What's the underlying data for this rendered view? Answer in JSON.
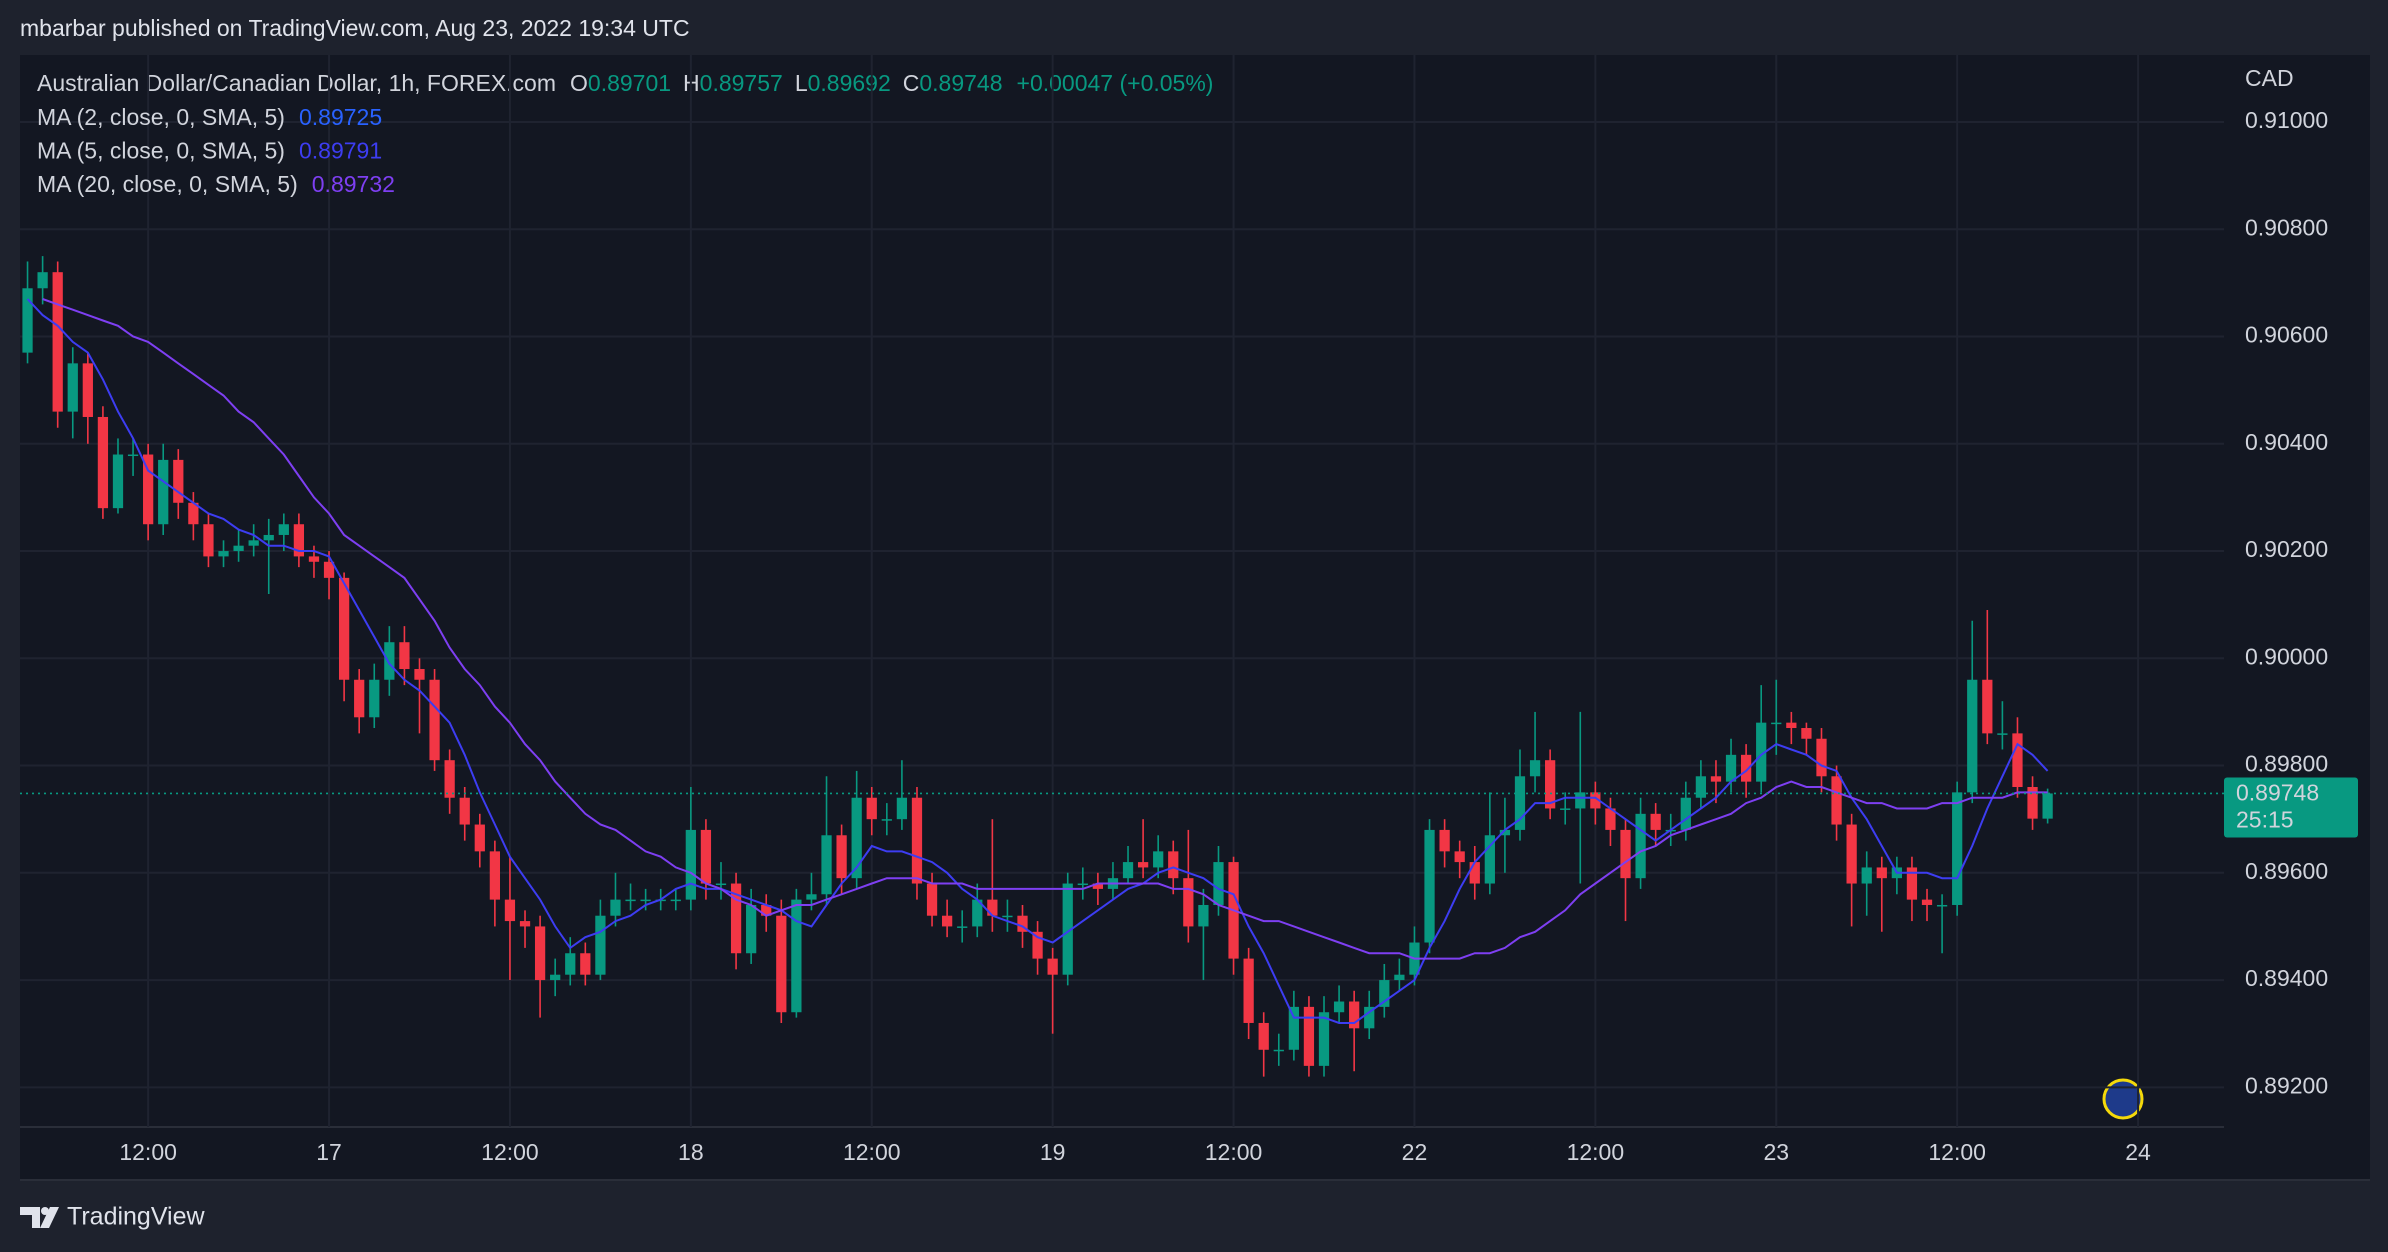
{
  "header": "mbarbar published on TradingView.com, Aug 23, 2022 19:34 UTC",
  "footer": "TradingView",
  "chart_data": {
    "type": "candlestick",
    "title": "Australian Dollar/Canadian Dollar, 1h, FOREX.com",
    "ohlc_labels": [
      "O",
      "H",
      "L",
      "C"
    ],
    "ohlc_values": [
      0.89701,
      0.89757,
      0.89692,
      0.89748
    ],
    "change_label": "+0.00047 (+0.05%)",
    "y_axis_label": "CAD",
    "last_price": 0.89748,
    "countdown": "25:15",
    "up_color": "#089981",
    "down_color": "#f23645",
    "grid": true,
    "ylim": [
      0.89126,
      0.91125
    ],
    "yticks": [
      {
        "value": 0.892,
        "label": "0.89200"
      },
      {
        "value": 0.894,
        "label": "0.89400"
      },
      {
        "value": 0.896,
        "label": "0.89600"
      },
      {
        "value": 0.898,
        "label": "0.89800"
      },
      {
        "value": 0.9,
        "label": "0.90000"
      },
      {
        "value": 0.902,
        "label": "0.90200"
      },
      {
        "value": 0.904,
        "label": "0.90400"
      },
      {
        "value": 0.906,
        "label": "0.90600"
      },
      {
        "value": 0.908,
        "label": "0.90800"
      },
      {
        "value": 0.91,
        "label": "0.91000"
      }
    ],
    "categories": [
      null,
      null,
      null,
      null,
      null,
      null,
      null,
      null,
      "12:00",
      null,
      null,
      null,
      null,
      null,
      null,
      null,
      null,
      null,
      null,
      null,
      "17",
      null,
      null,
      null,
      null,
      null,
      null,
      null,
      null,
      null,
      null,
      null,
      "12:00",
      null,
      null,
      null,
      null,
      null,
      null,
      null,
      null,
      null,
      null,
      null,
      "18",
      null,
      null,
      null,
      null,
      null,
      null,
      null,
      null,
      null,
      null,
      null,
      "12:00",
      null,
      null,
      null,
      null,
      null,
      null,
      null,
      null,
      null,
      null,
      null,
      "19",
      null,
      null,
      null,
      null,
      null,
      null,
      null,
      null,
      null,
      null,
      null,
      "12:00",
      null,
      null,
      null,
      null,
      null,
      null,
      null,
      null,
      null,
      null,
      null,
      "22",
      null,
      null,
      null,
      null,
      null,
      null,
      null,
      null,
      null,
      null,
      null,
      "12:00",
      null,
      null,
      null,
      null,
      null,
      null,
      null,
      null,
      null,
      null,
      null,
      "23",
      null,
      null,
      null,
      null,
      null,
      null,
      null,
      null,
      null,
      null,
      null,
      "12:00",
      null,
      null,
      null,
      null,
      null,
      null,
      null,
      null,
      null,
      null,
      null,
      "24"
    ],
    "open": [
      0.9057,
      0.9069,
      0.9072,
      0.9046,
      0.9055,
      0.9045,
      0.9028,
      0.9038,
      0.9038,
      0.9025,
      0.9037,
      0.9029,
      0.9025,
      0.9019,
      0.902,
      0.9021,
      0.9022,
      0.9023,
      0.9025,
      0.9019,
      0.9018,
      0.9015,
      0.8996,
      0.8989,
      0.8996,
      0.9003,
      0.8998,
      0.8996,
      0.8981,
      0.8974,
      0.8969,
      0.8964,
      0.8955,
      0.8951,
      0.895,
      0.894,
      0.8941,
      0.8945,
      0.8941,
      0.8952,
      0.8955,
      0.8955,
      0.8955,
      0.8955,
      0.8955,
      0.8968,
      0.8958,
      0.8958,
      0.8945,
      0.8954,
      0.8952,
      0.8934,
      0.8955,
      0.8956,
      0.8967,
      0.8959,
      0.8974,
      0.897,
      0.897,
      0.8974,
      0.8958,
      0.8952,
      0.895,
      0.895,
      0.8955,
      0.8952,
      0.8952,
      0.8949,
      0.8944,
      0.8941,
      0.8958,
      0.8958,
      0.8957,
      0.8959,
      0.8962,
      0.8961,
      0.8964,
      0.8959,
      0.895,
      0.8954,
      0.8962,
      0.8944,
      0.8932,
      0.8927,
      0.8927,
      0.8935,
      0.8924,
      0.8934,
      0.8936,
      0.8931,
      0.8935,
      0.894,
      0.8941,
      0.8947,
      0.8968,
      0.8964,
      0.8962,
      0.8958,
      0.8967,
      0.8968,
      0.8978,
      0.8981,
      0.8972,
      0.8972,
      0.8975,
      0.8972,
      0.8968,
      0.8959,
      0.8971,
      0.8968,
      0.8968,
      0.8974,
      0.8978,
      0.8977,
      0.8982,
      0.8977,
      0.8988,
      0.8988,
      0.8987,
      0.8985,
      0.8978,
      0.8969,
      0.8958,
      0.8961,
      0.8959,
      0.8961,
      0.8955,
      0.8954,
      0.8954,
      0.8975,
      0.8996,
      0.8986,
      0.8986,
      0.8976,
      0.89701,
      null,
      null,
      null,
      null,
      null,
      null
    ],
    "high": [
      0.9074,
      0.9075,
      0.9074,
      0.9058,
      0.9057,
      0.9047,
      0.9041,
      0.9041,
      0.904,
      0.904,
      0.9039,
      0.9031,
      0.9027,
      0.9022,
      0.9024,
      0.9025,
      0.9026,
      0.9027,
      0.9027,
      0.9021,
      0.902,
      0.9016,
      0.8998,
      0.8999,
      0.9006,
      0.9006,
      0.9,
      0.8998,
      0.8983,
      0.8976,
      0.8971,
      0.8966,
      0.8963,
      0.8953,
      0.8952,
      0.8944,
      0.8948,
      0.8947,
      0.8955,
      0.896,
      0.8958,
      0.8957,
      0.8957,
      0.8957,
      0.8976,
      0.897,
      0.8962,
      0.896,
      0.8957,
      0.8956,
      0.8955,
      0.8957,
      0.896,
      0.8978,
      0.8969,
      0.8979,
      0.8976,
      0.8973,
      0.8981,
      0.8976,
      0.896,
      0.8955,
      0.8953,
      0.8958,
      0.897,
      0.8955,
      0.8954,
      0.8951,
      0.8946,
      0.896,
      0.8961,
      0.896,
      0.8962,
      0.8965,
      0.897,
      0.8967,
      0.8966,
      0.8968,
      0.8957,
      0.8965,
      0.8963,
      0.8946,
      0.8934,
      0.893,
      0.8938,
      0.8937,
      0.8937,
      0.8939,
      0.8938,
      0.8938,
      0.8943,
      0.8944,
      0.895,
      0.897,
      0.897,
      0.8966,
      0.8965,
      0.8975,
      0.8974,
      0.8983,
      0.899,
      0.8983,
      0.8975,
      0.899,
      0.8977,
      0.8974,
      0.897,
      0.8974,
      0.8973,
      0.8971,
      0.8977,
      0.8981,
      0.8981,
      0.8985,
      0.8984,
      0.8995,
      0.8996,
      0.899,
      0.8988,
      0.8987,
      0.898,
      0.8971,
      0.8964,
      0.8963,
      0.8963,
      0.8963,
      0.8957,
      0.8956,
      0.8977,
      0.9007,
      0.9009,
      0.8992,
      0.8989,
      0.8978,
      0.89757,
      null,
      null,
      null,
      null,
      null,
      null
    ],
    "low": [
      0.9055,
      0.9066,
      0.9043,
      0.9041,
      0.904,
      0.9026,
      0.9027,
      0.9034,
      0.9022,
      0.9023,
      0.9026,
      0.9022,
      0.9017,
      0.9017,
      0.9018,
      0.9019,
      0.9012,
      0.902,
      0.9017,
      0.9015,
      0.9011,
      0.8992,
      0.8986,
      0.8987,
      0.8993,
      0.8995,
      0.8986,
      0.8979,
      0.8971,
      0.8966,
      0.8961,
      0.895,
      0.894,
      0.8946,
      0.8933,
      0.8937,
      0.8939,
      0.8939,
      0.894,
      0.895,
      0.8953,
      0.8953,
      0.8953,
      0.8953,
      0.8953,
      0.8955,
      0.8955,
      0.8942,
      0.8943,
      0.8949,
      0.8932,
      0.8933,
      0.8953,
      0.8954,
      0.8956,
      0.8957,
      0.8967,
      0.8967,
      0.8968,
      0.8955,
      0.895,
      0.8948,
      0.8947,
      0.8948,
      0.8949,
      0.8949,
      0.8946,
      0.8941,
      0.893,
      0.8939,
      0.8955,
      0.8954,
      0.8955,
      0.8958,
      0.8959,
      0.8959,
      0.8956,
      0.8947,
      0.894,
      0.8952,
      0.8941,
      0.8929,
      0.8922,
      0.8924,
      0.8925,
      0.8922,
      0.8922,
      0.8932,
      0.8923,
      0.8929,
      0.8933,
      0.8938,
      0.8939,
      0.8945,
      0.8961,
      0.8959,
      0.8955,
      0.8956,
      0.896,
      0.8966,
      0.8975,
      0.897,
      0.8969,
      0.8958,
      0.8969,
      0.8965,
      0.8951,
      0.8957,
      0.8965,
      0.8965,
      0.8966,
      0.8972,
      0.8973,
      0.8975,
      0.8974,
      0.8975,
      0.8982,
      0.8984,
      0.8982,
      0.8975,
      0.8966,
      0.895,
      0.8952,
      0.8949,
      0.8956,
      0.8951,
      0.8951,
      0.8945,
      0.8952,
      0.8973,
      0.8984,
      0.8983,
      0.8974,
      0.8968,
      0.89692,
      null,
      null,
      null,
      null,
      null,
      null
    ],
    "close": [
      0.9069,
      0.9072,
      0.9046,
      0.9055,
      0.9045,
      0.9028,
      0.9038,
      0.9038,
      0.9025,
      0.9037,
      0.9029,
      0.9025,
      0.9019,
      0.902,
      0.9021,
      0.9022,
      0.9023,
      0.9025,
      0.9019,
      0.9018,
      0.9015,
      0.8996,
      0.8989,
      0.8996,
      0.9003,
      0.8998,
      0.8996,
      0.8981,
      0.8974,
      0.8969,
      0.8964,
      0.8955,
      0.8951,
      0.895,
      0.894,
      0.8941,
      0.8945,
      0.8941,
      0.8952,
      0.8955,
      0.8955,
      0.8955,
      0.8955,
      0.8955,
      0.8968,
      0.8958,
      0.8958,
      0.8945,
      0.8954,
      0.8952,
      0.8934,
      0.8955,
      0.8956,
      0.8967,
      0.8959,
      0.8974,
      0.897,
      0.897,
      0.8974,
      0.8958,
      0.8952,
      0.895,
      0.895,
      0.8955,
      0.8952,
      0.8952,
      0.8949,
      0.8944,
      0.8941,
      0.8958,
      0.8958,
      0.8957,
      0.8959,
      0.8962,
      0.8961,
      0.8964,
      0.8959,
      0.895,
      0.8954,
      0.8962,
      0.8944,
      0.8932,
      0.8927,
      0.8927,
      0.8935,
      0.8924,
      0.8934,
      0.8936,
      0.8931,
      0.8935,
      0.894,
      0.8941,
      0.8947,
      0.8968,
      0.8964,
      0.8962,
      0.8958,
      0.8967,
      0.8968,
      0.8978,
      0.8981,
      0.8972,
      0.8972,
      0.8975,
      0.8972,
      0.8968,
      0.8959,
      0.8971,
      0.8968,
      0.8968,
      0.8974,
      0.8978,
      0.8977,
      0.8982,
      0.8977,
      0.8988,
      0.8988,
      0.8987,
      0.8985,
      0.8978,
      0.8969,
      0.8958,
      0.8961,
      0.8959,
      0.8961,
      0.8955,
      0.8954,
      0.8954,
      0.8975,
      0.8996,
      0.8986,
      0.8986,
      0.8976,
      0.89701,
      0.89748,
      null,
      null,
      null,
      null,
      null,
      null
    ],
    "series": [
      {
        "name": "MA (2, close, 0, SMA, 5)",
        "color": "#2962ff",
        "last": 0.89725
      },
      {
        "name": "MA (5, close, 0, SMA, 5)",
        "color": "#3d3df2",
        "last": 0.89791,
        "values": [
          0.9067,
          0.9064,
          0.9062,
          0.9059,
          0.9057,
          0.9052,
          0.9046,
          0.9041,
          0.9035,
          0.9033,
          0.9031,
          0.9029,
          0.9027,
          0.9026,
          0.9024,
          0.9023,
          0.9021,
          0.9021,
          0.902,
          0.902,
          0.9019,
          0.9014,
          0.9009,
          0.9004,
          0.8999,
          0.8996,
          0.8994,
          0.8991,
          0.8988,
          0.8982,
          0.8975,
          0.8969,
          0.8963,
          0.8959,
          0.8955,
          0.895,
          0.8946,
          0.8948,
          0.8949,
          0.8951,
          0.8952,
          0.8954,
          0.8955,
          0.8957,
          0.8958,
          0.8957,
          0.8957,
          0.8956,
          0.8955,
          0.8954,
          0.8953,
          0.8951,
          0.895,
          0.8954,
          0.8958,
          0.8961,
          0.8965,
          0.8964,
          0.8964,
          0.8963,
          0.8962,
          0.896,
          0.8957,
          0.8955,
          0.8952,
          0.8951,
          0.895,
          0.8948,
          0.8947,
          0.8949,
          0.8951,
          0.8953,
          0.8955,
          0.8957,
          0.8958,
          0.896,
          0.8961,
          0.896,
          0.8959,
          0.8957,
          0.8956,
          0.895,
          0.8945,
          0.8939,
          0.8933,
          0.8933,
          0.8933,
          0.8932,
          0.8932,
          0.8934,
          0.8936,
          0.8938,
          0.894,
          0.8946,
          0.8951,
          0.8957,
          0.8962,
          0.8965,
          0.8968,
          0.897,
          0.8973,
          0.8973,
          0.8974,
          0.8974,
          0.8974,
          0.8972,
          0.897,
          0.8968,
          0.8966,
          0.8968,
          0.897,
          0.8972,
          0.8974,
          0.8977,
          0.8979,
          0.8982,
          0.8984,
          0.8983,
          0.8982,
          0.898,
          0.8979,
          0.8974,
          0.897,
          0.8965,
          0.896,
          0.896,
          0.896,
          0.8959,
          0.8959,
          0.8965,
          0.8972,
          0.8978,
          0.8984,
          0.8982,
          0.8979,
          null,
          null,
          null,
          null,
          null,
          null
        ]
      },
      {
        "name": "MA (20, close, 0, SMA, 5)",
        "color": "#7e3ff2",
        "last": 0.89732,
        "values": [
          null,
          0.9067,
          0.9066,
          0.9065,
          0.9064,
          0.9063,
          0.9062,
          0.906,
          0.9059,
          0.9057,
          0.9055,
          0.9053,
          0.9051,
          0.9049,
          0.9046,
          0.9044,
          0.9041,
          0.9038,
          0.9034,
          0.903,
          0.9027,
          0.9023,
          0.9021,
          0.9019,
          0.9017,
          0.9015,
          0.9011,
          0.9007,
          0.9002,
          0.8998,
          0.8995,
          0.8991,
          0.8988,
          0.8984,
          0.8981,
          0.8977,
          0.8974,
          0.8971,
          0.8969,
          0.8968,
          0.8966,
          0.8964,
          0.8963,
          0.8961,
          0.896,
          0.8958,
          0.8957,
          0.8955,
          0.8954,
          0.8952,
          0.8953,
          0.8954,
          0.8954,
          0.8955,
          0.8956,
          0.8957,
          0.8958,
          0.8959,
          0.8959,
          0.8959,
          0.8958,
          0.8958,
          0.8958,
          0.8957,
          0.8957,
          0.8957,
          0.8957,
          0.8957,
          0.8957,
          0.8957,
          0.8957,
          0.8958,
          0.8958,
          0.8958,
          0.8958,
          0.8958,
          0.8957,
          0.8957,
          0.8956,
          0.8954,
          0.8953,
          0.8952,
          0.8951,
          0.8951,
          0.895,
          0.8949,
          0.8948,
          0.8947,
          0.8946,
          0.8945,
          0.8945,
          0.8945,
          0.8944,
          0.8944,
          0.8944,
          0.8944,
          0.8945,
          0.8945,
          0.8946,
          0.8948,
          0.8949,
          0.8951,
          0.8953,
          0.8956,
          0.8958,
          0.896,
          0.8962,
          0.8964,
          0.8965,
          0.8967,
          0.8968,
          0.8969,
          0.897,
          0.8971,
          0.8973,
          0.8974,
          0.8976,
          0.8977,
          0.8976,
          0.8976,
          0.8975,
          0.8974,
          0.8973,
          0.8973,
          0.8972,
          0.8972,
          0.8972,
          0.8973,
          0.8973,
          0.8974,
          0.8974,
          0.8974,
          0.8975,
          0.8975,
          0.8975,
          null,
          null,
          null,
          null,
          null,
          null
        ]
      }
    ]
  }
}
